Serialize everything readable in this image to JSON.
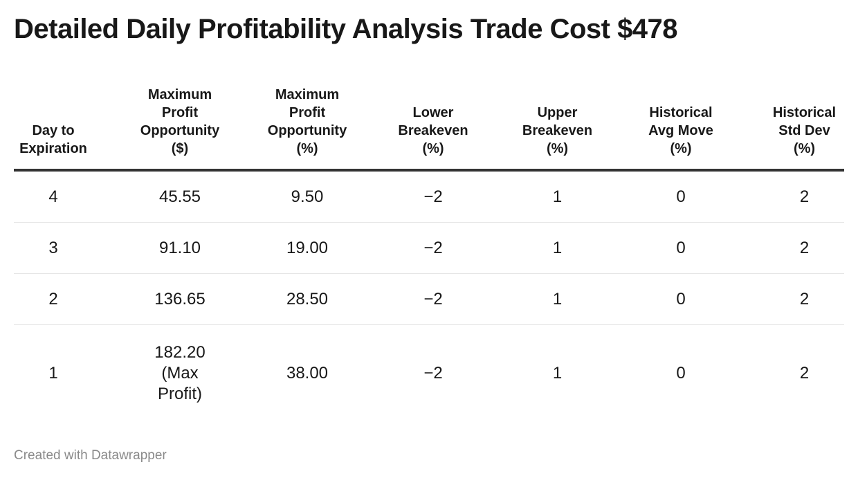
{
  "title": "Detailed Daily Profitability Analysis Trade Cost $478",
  "chart_data": {
    "type": "table",
    "columns": [
      "Day to Expiration",
      "Maximum Profit Opportunity ($)",
      "Maximum Profit Opportunity (%)",
      "Lower Breakeven (%)",
      "Upper Breakeven (%)",
      "Historical Avg Move (%)",
      "Historical Std Dev (%)"
    ],
    "rows": [
      [
        "4",
        "45.55",
        "9.50",
        "−2",
        "1",
        "0",
        "2"
      ],
      [
        "3",
        "91.10",
        "19.00",
        "−2",
        "1",
        "0",
        "2"
      ],
      [
        "2",
        "136.65",
        "28.50",
        "−2",
        "1",
        "0",
        "2"
      ],
      [
        "1",
        "182.20 (Max Profit)",
        "38.00",
        "−2",
        "1",
        "0",
        "2"
      ]
    ]
  },
  "footer": "Created with Datawrapper"
}
